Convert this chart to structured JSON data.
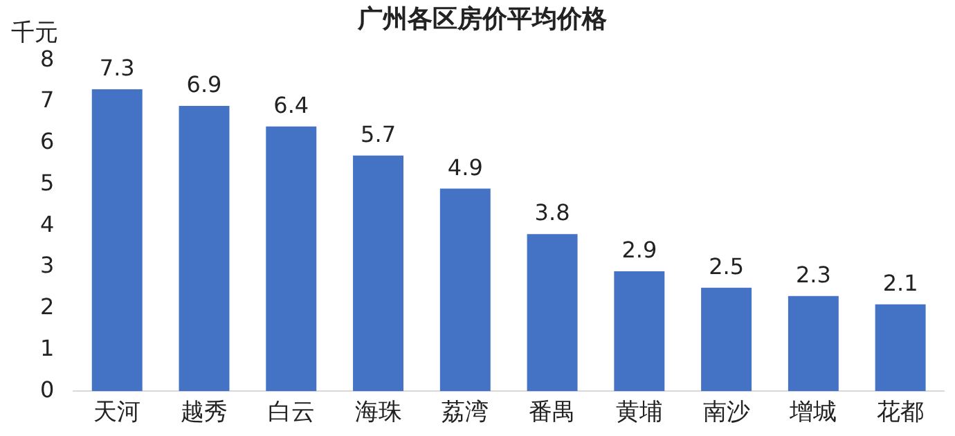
{
  "chart_data": {
    "type": "bar",
    "title": "广州各区房价平均价格",
    "ylabel": "千元",
    "categories": [
      "天河",
      "越秀",
      "白云",
      "海珠",
      "荔湾",
      "番禺",
      "黄埔",
      "南沙",
      "增城",
      "花都"
    ],
    "values": [
      7.3,
      6.9,
      6.4,
      5.7,
      4.9,
      3.8,
      2.9,
      2.5,
      2.3,
      2.1
    ],
    "color": "#4472c4",
    "ylim": [
      0,
      8
    ],
    "yticks": [
      0,
      1,
      2,
      3,
      4,
      5,
      6,
      7,
      8
    ],
    "grid": false,
    "legend": false,
    "data_labels": true
  }
}
